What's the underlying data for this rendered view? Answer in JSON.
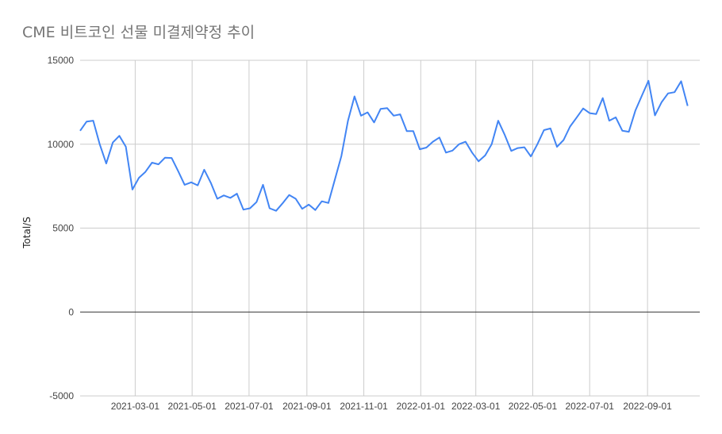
{
  "chart_data": {
    "type": "line",
    "title": "CME 비트코인 선물 미결제약정 추이",
    "xlabel": "",
    "ylabel": "Total/S",
    "ylim": [
      -5000,
      15000
    ],
    "yticks": [
      -5000,
      0,
      5000,
      10000,
      15000
    ],
    "xlim": [
      "2021-01-01",
      "2022-10-27"
    ],
    "xticks": [
      "2021-03-01",
      "2021-05-01",
      "2021-07-01",
      "2021-09-01",
      "2021-11-01",
      "2022-01-01",
      "2022-03-01",
      "2022-05-01",
      "2022-07-01",
      "2022-09-01"
    ],
    "grid": true,
    "line_color": "#4285f4",
    "series": [
      {
        "points": [
          [
            "2021-01-01",
            10800
          ],
          [
            "2021-01-08",
            11350
          ],
          [
            "2021-01-15",
            11400
          ],
          [
            "2021-01-22",
            10000
          ],
          [
            "2021-01-29",
            8850
          ],
          [
            "2021-02-05",
            10100
          ],
          [
            "2021-02-12",
            10500
          ],
          [
            "2021-02-19",
            9850
          ],
          [
            "2021-02-26",
            7300
          ],
          [
            "2021-03-05",
            8000
          ],
          [
            "2021-03-12",
            8350
          ],
          [
            "2021-03-19",
            8900
          ],
          [
            "2021-03-26",
            8800
          ],
          [
            "2021-04-02",
            9200
          ],
          [
            "2021-04-09",
            9180
          ],
          [
            "2021-04-16",
            8400
          ],
          [
            "2021-04-23",
            7580
          ],
          [
            "2021-04-30",
            7730
          ],
          [
            "2021-05-07",
            7550
          ],
          [
            "2021-05-14",
            8480
          ],
          [
            "2021-05-21",
            7700
          ],
          [
            "2021-05-28",
            6750
          ],
          [
            "2021-06-04",
            6950
          ],
          [
            "2021-06-11",
            6800
          ],
          [
            "2021-06-18",
            7050
          ],
          [
            "2021-06-25",
            6100
          ],
          [
            "2021-07-02",
            6180
          ],
          [
            "2021-07-09",
            6550
          ],
          [
            "2021-07-16",
            7580
          ],
          [
            "2021-07-23",
            6180
          ],
          [
            "2021-07-30",
            6030
          ],
          [
            "2021-08-06",
            6480
          ],
          [
            "2021-08-13",
            6970
          ],
          [
            "2021-08-20",
            6750
          ],
          [
            "2021-08-27",
            6150
          ],
          [
            "2021-09-03",
            6400
          ],
          [
            "2021-09-10",
            6080
          ],
          [
            "2021-09-17",
            6600
          ],
          [
            "2021-09-24",
            6500
          ],
          [
            "2021-10-01",
            7900
          ],
          [
            "2021-10-08",
            9300
          ],
          [
            "2021-10-15",
            11400
          ],
          [
            "2021-10-22",
            12850
          ],
          [
            "2021-10-29",
            11700
          ],
          [
            "2021-11-05",
            11900
          ],
          [
            "2021-11-12",
            11300
          ],
          [
            "2021-11-19",
            12100
          ],
          [
            "2021-11-26",
            12150
          ],
          [
            "2021-12-03",
            11700
          ],
          [
            "2021-12-10",
            11780
          ],
          [
            "2021-12-17",
            10780
          ],
          [
            "2021-12-24",
            10780
          ],
          [
            "2021-12-31",
            9700
          ],
          [
            "2022-01-07",
            9800
          ],
          [
            "2022-01-14",
            10150
          ],
          [
            "2022-01-21",
            10400
          ],
          [
            "2022-01-28",
            9500
          ],
          [
            "2022-02-04",
            9620
          ],
          [
            "2022-02-11",
            10000
          ],
          [
            "2022-02-18",
            10150
          ],
          [
            "2022-02-25",
            9500
          ],
          [
            "2022-03-04",
            8980
          ],
          [
            "2022-03-11",
            9330
          ],
          [
            "2022-03-18",
            10000
          ],
          [
            "2022-03-25",
            11400
          ],
          [
            "2022-04-01",
            10550
          ],
          [
            "2022-04-08",
            9600
          ],
          [
            "2022-04-15",
            9770
          ],
          [
            "2022-04-22",
            9820
          ],
          [
            "2022-04-29",
            9270
          ],
          [
            "2022-05-06",
            10000
          ],
          [
            "2022-05-13",
            10840
          ],
          [
            "2022-05-20",
            10940
          ],
          [
            "2022-05-27",
            9840
          ],
          [
            "2022-06-03",
            10250
          ],
          [
            "2022-06-10",
            11050
          ],
          [
            "2022-06-17",
            11580
          ],
          [
            "2022-06-24",
            12130
          ],
          [
            "2022-07-01",
            11850
          ],
          [
            "2022-07-08",
            11800
          ],
          [
            "2022-07-15",
            12750
          ],
          [
            "2022-07-22",
            11400
          ],
          [
            "2022-07-29",
            11600
          ],
          [
            "2022-08-05",
            10800
          ],
          [
            "2022-08-12",
            10740
          ],
          [
            "2022-08-19",
            12000
          ],
          [
            "2022-08-26",
            12900
          ],
          [
            "2022-09-02",
            13780
          ],
          [
            "2022-09-09",
            11720
          ],
          [
            "2022-09-16",
            12500
          ],
          [
            "2022-09-23",
            13030
          ],
          [
            "2022-09-30",
            13100
          ],
          [
            "2022-10-07",
            13750
          ],
          [
            "2022-10-14",
            12280
          ]
        ]
      }
    ]
  }
}
